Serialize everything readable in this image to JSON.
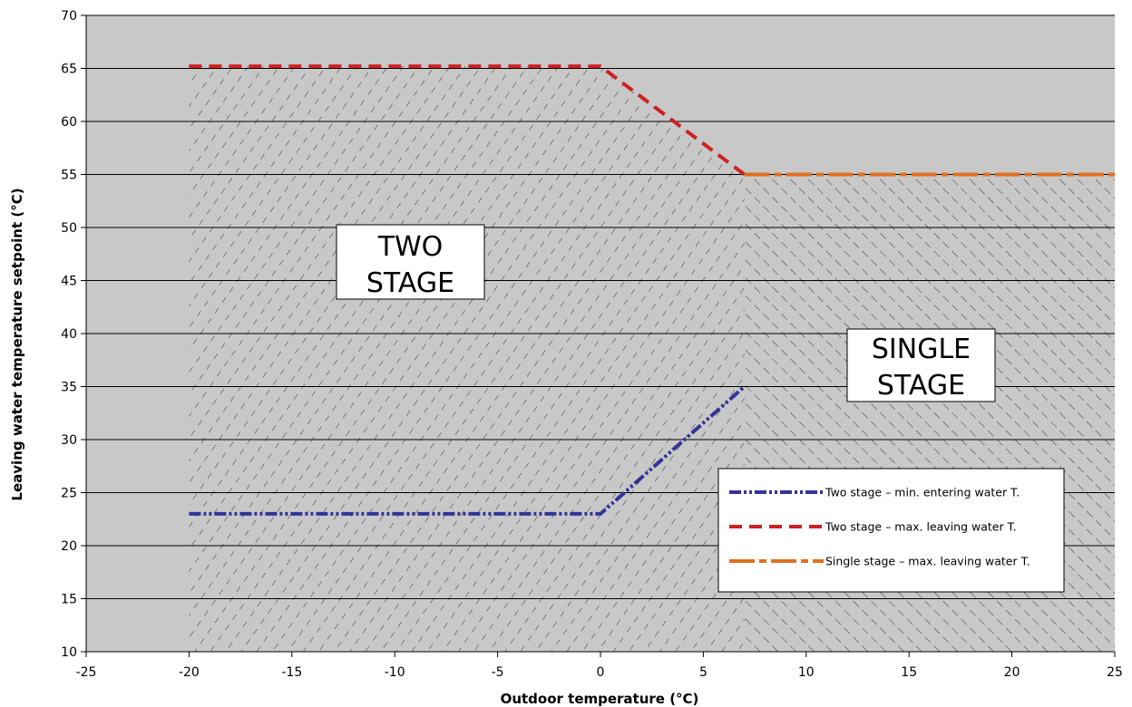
{
  "chart_data": {
    "type": "line",
    "xlabel": "Outdoor temperature (°C)",
    "ylabel": "Leaving water temperature setpoint (°C)",
    "xlim": [
      -25,
      25
    ],
    "ylim": [
      10,
      70
    ],
    "xticks": [
      "-25",
      "-20",
      "-15",
      "-10",
      "-5",
      "0",
      "5",
      "10",
      "15",
      "20",
      "25"
    ],
    "yticks": [
      "10",
      "15",
      "20",
      "25",
      "30",
      "35",
      "40",
      "45",
      "50",
      "55",
      "60",
      "65",
      "70"
    ],
    "grid": "horizontal",
    "legend_position": "bottom-right",
    "series": [
      {
        "name": "Two stage – min. entering water T.",
        "color": "#333399",
        "style": "dash-dot-dot",
        "x": [
          -20,
          0,
          7
        ],
        "y": [
          23,
          23,
          35
        ]
      },
      {
        "name": "Two stage – max. leaving water T.",
        "color": "#cc2222",
        "style": "dash",
        "x": [
          -20,
          0,
          7
        ],
        "y": [
          65.2,
          65.2,
          55
        ]
      },
      {
        "name": "Single stage – max. leaving water T.",
        "color": "#e07020",
        "style": "long-dash-dot",
        "x": [
          7,
          25
        ],
        "y": [
          55,
          55
        ]
      }
    ],
    "regions": [
      {
        "label_lines": [
          "TWO",
          "STAGE"
        ],
        "hatch": "forward"
      },
      {
        "label_lines": [
          "SINGLE",
          "STAGE"
        ],
        "hatch": "backward"
      }
    ],
    "colors": {
      "plot_background": "#c8c8c8",
      "gridline": "#000000"
    }
  }
}
